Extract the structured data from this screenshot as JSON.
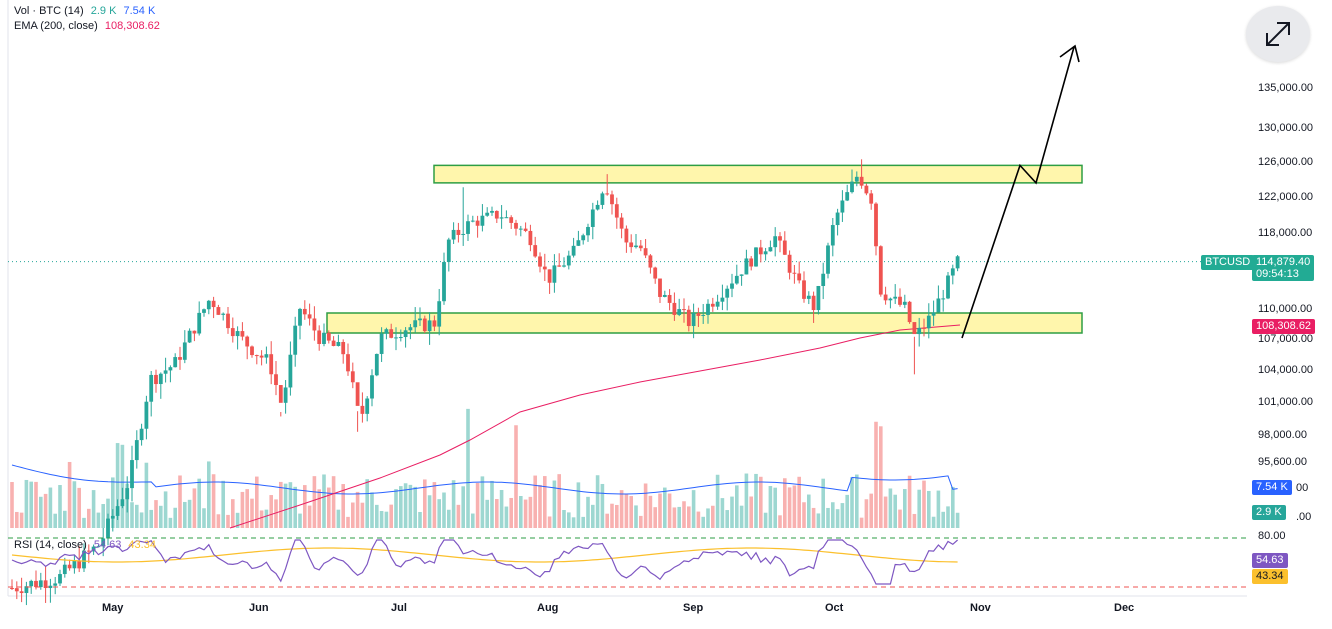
{
  "legend": {
    "volume": {
      "label": "Vol · BTC (14)",
      "value1": "2.9 K",
      "value2": "7.54 K"
    },
    "ema": {
      "label": "EMA (200, close)",
      "value": "108,308.62"
    },
    "rsi": {
      "label": "RSI (14, close)",
      "value1": "54.63",
      "value2": "43.34"
    }
  },
  "labels": {
    "ticker": "BTCUSD",
    "last_price": "114,879.40",
    "countdown": "09:54:13",
    "ema_value": "108,308.62",
    "vol_avg": "7.54 K",
    "vol_last": "2.9 K",
    "rsi_value": "54.63",
    "rsi_ma": "43.34"
  },
  "colors": {
    "up": "#26a69a",
    "down": "#ef5350",
    "ema": "#e91e63",
    "volume_ma": "#2962ff",
    "rsi": "#7e57c2",
    "rsi_ma": "#fbc02d",
    "zone_fill": "#fff59d",
    "zone_border": "#2e9e44",
    "ticker_bg": "#22ab94"
  },
  "icons": {
    "expand": "expand-arrows-icon"
  },
  "chart_data": {
    "type": "candlestick",
    "price_axis": {
      "ticks": [
        101000,
        104000,
        107000,
        110000,
        118000,
        122000,
        126000,
        130000,
        135000
      ],
      "tick_labels": [
        "101,000.00",
        "104,000.00",
        "107,000.00",
        "110,000.00",
        "118,000.00",
        "122,000.00",
        "126,000.00",
        "130,000.00",
        "135,000.00"
      ],
      "partial_labels": [
        "98,000.00",
        "95,600.00",
        "00",
        ".00"
      ]
    },
    "time_axis": {
      "ticks": [
        "May",
        "Jun",
        "Jul",
        "Aug",
        "Sep",
        "Oct",
        "Nov",
        "Dec"
      ]
    },
    "rsi_axis": {
      "levels": [
        80,
        20
      ],
      "tick_label": "80.00"
    },
    "zones": [
      {
        "name": "resistance",
        "from": 123500,
        "to": 125500,
        "start": "Jul",
        "end": "Nov"
      },
      {
        "name": "support",
        "from": 107500,
        "to": 109500,
        "start": "Jun",
        "end": "Nov"
      }
    ],
    "projection": {
      "points": [
        107000,
        125500,
        123500,
        140000
      ]
    },
    "series": [
      {
        "name": "BTCUSD",
        "last": 114879.4
      },
      {
        "name": "EMA (200, close)",
        "last": 108308.62
      },
      {
        "name": "Vol · BTC (14)",
        "last": 2.9,
        "average": 7.54
      },
      {
        "name": "RSI (14, close)",
        "last": 54.63,
        "average": 43.34
      }
    ]
  }
}
